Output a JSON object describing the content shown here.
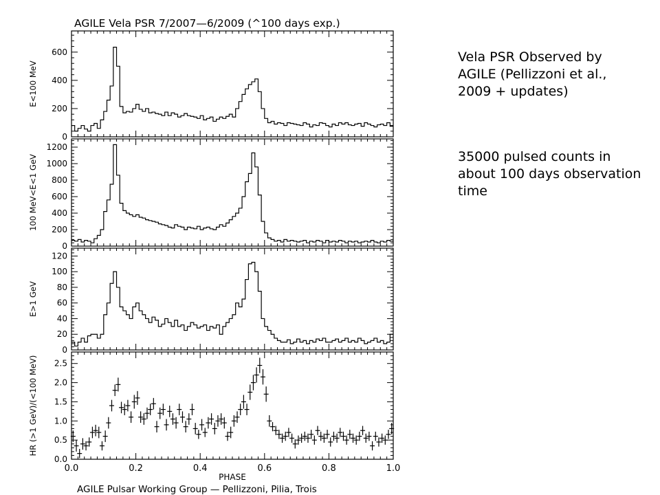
{
  "title": "AGILE Vela PSR 7/2007—6/2009 (^100 days exp.)",
  "footer": "AGILE Pulsar Working Group — Pellizzoni, Pilia, Trois",
  "notes": {
    "line1": "Vela PSR Observed by AGILE (Pellizzoni et al., 2009 + updates)",
    "line2": "35000 pulsed counts in about 100 days observation time"
  },
  "colors": {
    "line": "#000000",
    "background": "#ffffff"
  },
  "chart_data": [
    {
      "type": "line",
      "step": true,
      "ylabel": "E<100 MeV",
      "xlim": [
        0.0,
        1.0
      ],
      "ylim": [
        0,
        750
      ],
      "yticks": [
        0,
        200,
        400,
        600
      ],
      "x": [
        0.0,
        0.01,
        0.02,
        0.03,
        0.04,
        0.05,
        0.06,
        0.07,
        0.08,
        0.09,
        0.1,
        0.11,
        0.12,
        0.13,
        0.14,
        0.15,
        0.16,
        0.17,
        0.18,
        0.19,
        0.2,
        0.21,
        0.22,
        0.23,
        0.24,
        0.25,
        0.26,
        0.27,
        0.28,
        0.29,
        0.3,
        0.31,
        0.32,
        0.33,
        0.34,
        0.35,
        0.36,
        0.37,
        0.38,
        0.39,
        0.4,
        0.41,
        0.42,
        0.43,
        0.44,
        0.45,
        0.46,
        0.47,
        0.48,
        0.49,
        0.5,
        0.51,
        0.52,
        0.53,
        0.54,
        0.55,
        0.56,
        0.57,
        0.58,
        0.59,
        0.6,
        0.61,
        0.62,
        0.63,
        0.64,
        0.65,
        0.66,
        0.67,
        0.68,
        0.69,
        0.7,
        0.71,
        0.72,
        0.73,
        0.74,
        0.75,
        0.76,
        0.77,
        0.78,
        0.79,
        0.8,
        0.81,
        0.82,
        0.83,
        0.84,
        0.85,
        0.86,
        0.87,
        0.88,
        0.89,
        0.9,
        0.91,
        0.92,
        0.93,
        0.94,
        0.95,
        0.96,
        0.97,
        0.98,
        0.99
      ],
      "values": [
        80,
        40,
        60,
        80,
        55,
        40,
        80,
        95,
        60,
        120,
        180,
        260,
        360,
        635,
        500,
        215,
        170,
        180,
        175,
        200,
        230,
        195,
        180,
        200,
        170,
        175,
        165,
        160,
        150,
        175,
        150,
        170,
        160,
        140,
        150,
        165,
        150,
        145,
        140,
        130,
        150,
        120,
        130,
        140,
        110,
        125,
        140,
        130,
        145,
        160,
        140,
        200,
        250,
        300,
        340,
        370,
        390,
        410,
        320,
        200,
        130,
        100,
        110,
        90,
        100,
        95,
        80,
        100,
        95,
        90,
        85,
        80,
        100,
        90,
        70,
        85,
        80,
        100,
        95,
        80,
        70,
        90,
        80,
        100,
        90,
        100,
        85,
        80,
        90,
        95,
        75,
        100,
        90,
        80,
        70,
        85,
        90,
        80,
        100,
        75
      ]
    },
    {
      "type": "line",
      "step": true,
      "ylabel": "100 MeV<E<1 GeV",
      "xlim": [
        0.0,
        1.0
      ],
      "ylim": [
        0,
        1300
      ],
      "yticks": [
        0,
        200,
        400,
        600,
        800,
        1000,
        1200
      ],
      "x": [
        0.0,
        0.01,
        0.02,
        0.03,
        0.04,
        0.05,
        0.06,
        0.07,
        0.08,
        0.09,
        0.1,
        0.11,
        0.12,
        0.13,
        0.14,
        0.15,
        0.16,
        0.17,
        0.18,
        0.19,
        0.2,
        0.21,
        0.22,
        0.23,
        0.24,
        0.25,
        0.26,
        0.27,
        0.28,
        0.29,
        0.3,
        0.31,
        0.32,
        0.33,
        0.34,
        0.35,
        0.36,
        0.37,
        0.38,
        0.39,
        0.4,
        0.41,
        0.42,
        0.43,
        0.44,
        0.45,
        0.46,
        0.47,
        0.48,
        0.49,
        0.5,
        0.51,
        0.52,
        0.53,
        0.54,
        0.55,
        0.56,
        0.57,
        0.58,
        0.59,
        0.6,
        0.61,
        0.62,
        0.63,
        0.64,
        0.65,
        0.66,
        0.67,
        0.68,
        0.69,
        0.7,
        0.71,
        0.72,
        0.73,
        0.74,
        0.75,
        0.76,
        0.77,
        0.78,
        0.79,
        0.8,
        0.81,
        0.82,
        0.83,
        0.84,
        0.85,
        0.86,
        0.87,
        0.88,
        0.89,
        0.9,
        0.91,
        0.92,
        0.93,
        0.94,
        0.95,
        0.96,
        0.97,
        0.98,
        0.99
      ],
      "values": [
        70,
        60,
        80,
        50,
        70,
        60,
        40,
        90,
        130,
        200,
        420,
        560,
        750,
        1230,
        860,
        520,
        430,
        400,
        380,
        360,
        380,
        350,
        340,
        320,
        310,
        300,
        290,
        270,
        260,
        250,
        230,
        220,
        260,
        240,
        230,
        200,
        230,
        220,
        210,
        240,
        200,
        220,
        230,
        210,
        200,
        230,
        260,
        240,
        280,
        320,
        360,
        400,
        460,
        600,
        780,
        880,
        1130,
        960,
        620,
        300,
        160,
        100,
        80,
        60,
        70,
        50,
        80,
        60,
        70,
        60,
        50,
        60,
        70,
        40,
        60,
        50,
        70,
        60,
        40,
        70,
        50,
        60,
        50,
        70,
        60,
        40,
        60,
        50,
        60,
        40,
        50,
        60,
        50,
        70,
        50,
        40,
        60,
        50,
        70,
        60
      ]
    },
    {
      "type": "line",
      "step": true,
      "ylabel": "E>1 GeV",
      "xlim": [
        0.0,
        1.0
      ],
      "ylim": [
        0,
        130
      ],
      "yticks": [
        0,
        20,
        40,
        60,
        80,
        100,
        120
      ],
      "x": [
        0.0,
        0.01,
        0.02,
        0.03,
        0.04,
        0.05,
        0.06,
        0.07,
        0.08,
        0.09,
        0.1,
        0.11,
        0.12,
        0.13,
        0.14,
        0.15,
        0.16,
        0.17,
        0.18,
        0.19,
        0.2,
        0.21,
        0.22,
        0.23,
        0.24,
        0.25,
        0.26,
        0.27,
        0.28,
        0.29,
        0.3,
        0.31,
        0.32,
        0.33,
        0.34,
        0.35,
        0.36,
        0.37,
        0.38,
        0.39,
        0.4,
        0.41,
        0.42,
        0.43,
        0.44,
        0.45,
        0.46,
        0.47,
        0.48,
        0.49,
        0.5,
        0.51,
        0.52,
        0.53,
        0.54,
        0.55,
        0.56,
        0.57,
        0.58,
        0.59,
        0.6,
        0.61,
        0.62,
        0.63,
        0.64,
        0.65,
        0.66,
        0.67,
        0.68,
        0.69,
        0.7,
        0.71,
        0.72,
        0.73,
        0.74,
        0.75,
        0.76,
        0.77,
        0.78,
        0.79,
        0.8,
        0.81,
        0.82,
        0.83,
        0.84,
        0.85,
        0.86,
        0.87,
        0.88,
        0.89,
        0.9,
        0.91,
        0.92,
        0.93,
        0.94,
        0.95,
        0.96,
        0.97,
        0.98,
        0.99
      ],
      "values": [
        10,
        5,
        10,
        15,
        10,
        18,
        20,
        20,
        15,
        20,
        45,
        60,
        85,
        100,
        80,
        55,
        50,
        45,
        40,
        55,
        60,
        50,
        45,
        40,
        35,
        42,
        38,
        30,
        33,
        40,
        35,
        30,
        38,
        30,
        32,
        25,
        30,
        35,
        32,
        28,
        30,
        32,
        25,
        30,
        28,
        32,
        20,
        30,
        35,
        40,
        45,
        60,
        55,
        65,
        90,
        110,
        112,
        100,
        75,
        40,
        30,
        25,
        20,
        15,
        12,
        10,
        10,
        13,
        8,
        10,
        14,
        10,
        12,
        8,
        12,
        10,
        14,
        12,
        15,
        10,
        10,
        12,
        14,
        10,
        12,
        15,
        10,
        12,
        10,
        15,
        12,
        8,
        10,
        12,
        15,
        10,
        12,
        8,
        10,
        20
      ]
    },
    {
      "type": "scatter",
      "errorbars": true,
      "ylabel": "HR (>1 GeV)/(<100 MeV)",
      "xlabel": "PHASE",
      "xlim": [
        0.0,
        1.0
      ],
      "ylim": [
        0.0,
        2.8
      ],
      "yticks": [
        0.0,
        0.5,
        1.0,
        1.5,
        2.0,
        2.5
      ],
      "xticks": [
        0.0,
        0.2,
        0.4,
        0.6,
        0.8,
        1.0
      ],
      "x": [
        0.005,
        0.015,
        0.025,
        0.035,
        0.045,
        0.055,
        0.065,
        0.075,
        0.085,
        0.095,
        0.105,
        0.115,
        0.125,
        0.135,
        0.145,
        0.155,
        0.165,
        0.175,
        0.185,
        0.195,
        0.205,
        0.215,
        0.225,
        0.235,
        0.245,
        0.255,
        0.265,
        0.275,
        0.285,
        0.295,
        0.305,
        0.315,
        0.325,
        0.335,
        0.345,
        0.355,
        0.365,
        0.375,
        0.385,
        0.395,
        0.405,
        0.415,
        0.425,
        0.435,
        0.445,
        0.455,
        0.465,
        0.475,
        0.485,
        0.495,
        0.505,
        0.515,
        0.525,
        0.535,
        0.545,
        0.555,
        0.565,
        0.575,
        0.585,
        0.595,
        0.605,
        0.615,
        0.625,
        0.635,
        0.645,
        0.655,
        0.665,
        0.675,
        0.685,
        0.695,
        0.705,
        0.715,
        0.725,
        0.735,
        0.745,
        0.755,
        0.765,
        0.775,
        0.785,
        0.795,
        0.805,
        0.815,
        0.825,
        0.835,
        0.845,
        0.855,
        0.865,
        0.875,
        0.885,
        0.895,
        0.905,
        0.915,
        0.925,
        0.935,
        0.945,
        0.955,
        0.965,
        0.975,
        0.985,
        0.995
      ],
      "values": [
        0.6,
        0.35,
        0.15,
        0.4,
        0.35,
        0.45,
        0.7,
        0.75,
        0.7,
        0.35,
        0.6,
        0.95,
        1.4,
        1.8,
        1.95,
        1.35,
        1.3,
        1.4,
        1.1,
        1.5,
        1.6,
        1.1,
        1.05,
        1.2,
        1.3,
        1.45,
        0.85,
        1.2,
        1.3,
        0.9,
        1.25,
        1.05,
        0.95,
        1.3,
        1.1,
        0.85,
        1.05,
        1.3,
        0.8,
        0.65,
        0.9,
        0.7,
        0.95,
        1.05,
        0.8,
        1.0,
        1.05,
        0.95,
        0.6,
        0.7,
        1.0,
        1.1,
        1.3,
        1.5,
        1.3,
        1.75,
        2.0,
        2.2,
        2.45,
        2.15,
        1.7,
        1.0,
        0.85,
        0.75,
        0.65,
        0.55,
        0.6,
        0.7,
        0.55,
        0.4,
        0.5,
        0.55,
        0.6,
        0.55,
        0.65,
        0.5,
        0.75,
        0.6,
        0.55,
        0.65,
        0.45,
        0.6,
        0.55,
        0.7,
        0.6,
        0.5,
        0.65,
        0.55,
        0.5,
        0.6,
        0.75,
        0.55,
        0.6,
        0.35,
        0.6,
        0.45,
        0.55,
        0.5,
        0.65,
        0.8
      ],
      "errors": [
        0.15,
        0.15,
        0.12,
        0.15,
        0.12,
        0.12,
        0.15,
        0.15,
        0.15,
        0.12,
        0.15,
        0.15,
        0.15,
        0.15,
        0.18,
        0.15,
        0.15,
        0.15,
        0.15,
        0.18,
        0.18,
        0.15,
        0.15,
        0.15,
        0.15,
        0.15,
        0.15,
        0.15,
        0.15,
        0.15,
        0.15,
        0.15,
        0.15,
        0.15,
        0.15,
        0.15,
        0.15,
        0.15,
        0.15,
        0.12,
        0.15,
        0.12,
        0.15,
        0.15,
        0.15,
        0.15,
        0.15,
        0.15,
        0.12,
        0.15,
        0.15,
        0.15,
        0.15,
        0.18,
        0.15,
        0.2,
        0.2,
        0.2,
        0.2,
        0.2,
        0.2,
        0.15,
        0.12,
        0.12,
        0.12,
        0.12,
        0.12,
        0.12,
        0.12,
        0.12,
        0.12,
        0.12,
        0.12,
        0.12,
        0.12,
        0.12,
        0.12,
        0.12,
        0.12,
        0.12,
        0.12,
        0.12,
        0.12,
        0.12,
        0.12,
        0.12,
        0.12,
        0.12,
        0.12,
        0.12,
        0.12,
        0.12,
        0.12,
        0.12,
        0.12,
        0.12,
        0.12,
        0.12,
        0.12,
        0.15
      ]
    }
  ]
}
